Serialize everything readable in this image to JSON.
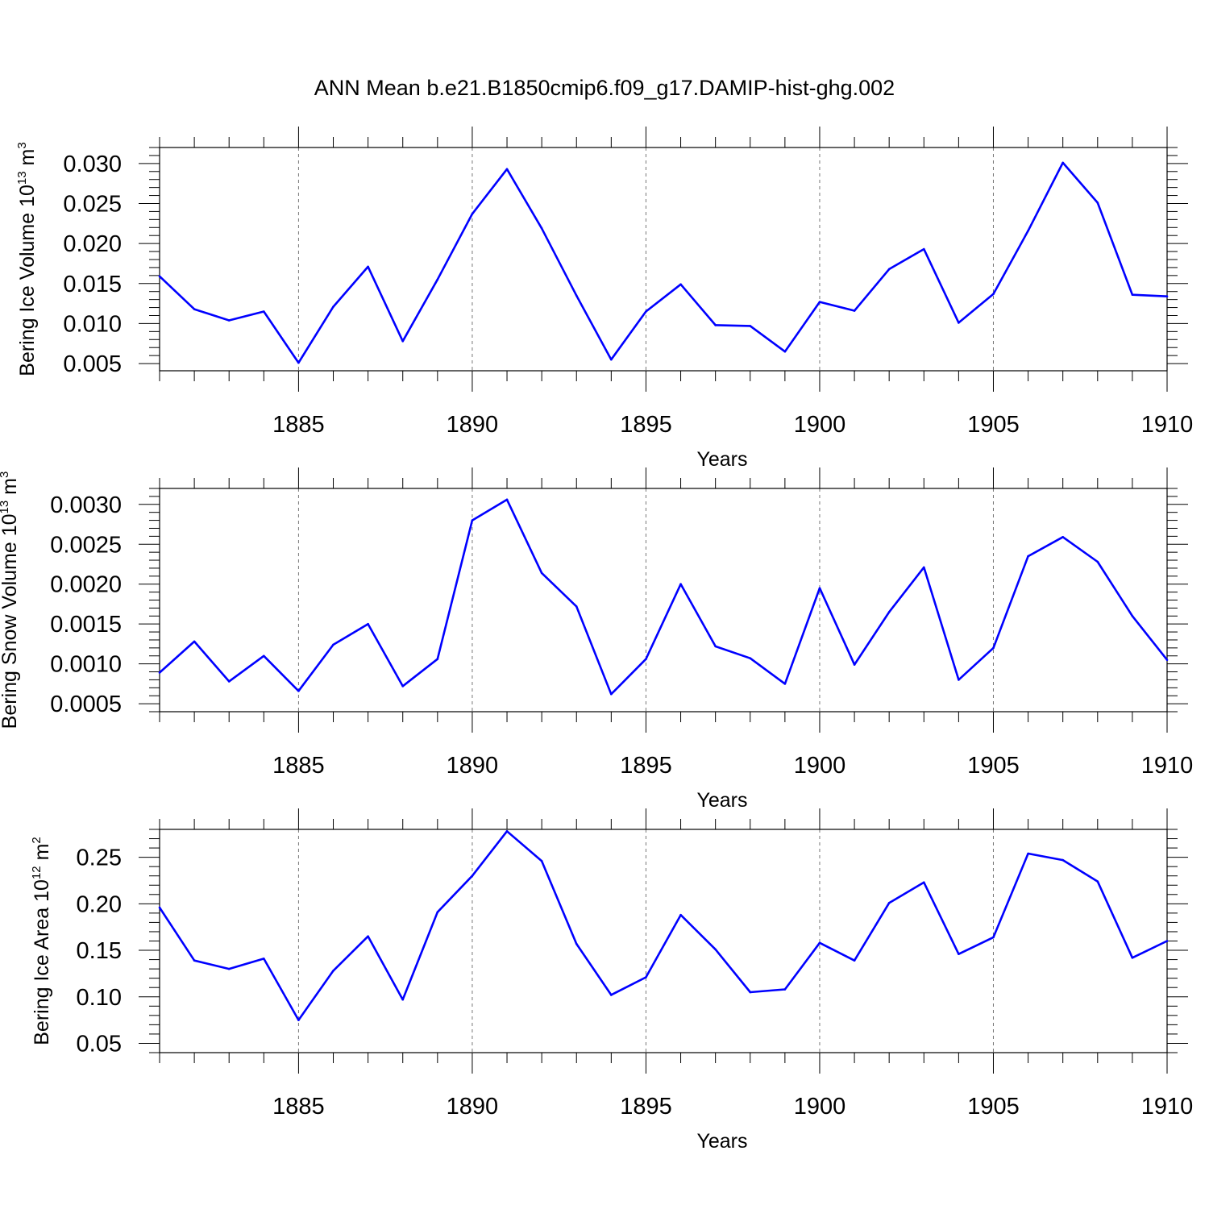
{
  "title": "ANN Mean b.e21.B1850cmip6.f09_g17.DAMIP-hist-ghg.002",
  "colors": {
    "series": "#0000ff",
    "axis": "#000000",
    "grid": "#777777"
  },
  "chart_data": [
    {
      "type": "line",
      "ylabel": "Bering Ice Volume 10",
      "ylabel_exp": "13",
      "ylabel_unit": " m",
      "ylabel_unit_exp": "3",
      "xlabel": "Years",
      "xlim": [
        1881,
        1910
      ],
      "ylim": [
        0.0041,
        0.032
      ],
      "grid": "dashed vertical at major x ticks",
      "x_ticks": [
        1885,
        1890,
        1895,
        1900,
        1905,
        1910
      ],
      "x_tick_labels": [
        "1885",
        "1890",
        "1895",
        "1900",
        "1905",
        "1910"
      ],
      "y_ticks": [
        0.005,
        0.01,
        0.015,
        0.02,
        0.025,
        0.03
      ],
      "y_tick_labels": [
        "0.005",
        "0.010",
        "0.015",
        "0.020",
        "0.025",
        "0.030"
      ],
      "x": [
        1881,
        1882,
        1883,
        1884,
        1885,
        1886,
        1887,
        1888,
        1889,
        1890,
        1891,
        1892,
        1893,
        1894,
        1895,
        1896,
        1897,
        1898,
        1899,
        1900,
        1901,
        1902,
        1903,
        1904,
        1905,
        1906,
        1907,
        1908,
        1909,
        1910
      ],
      "y": [
        0.0159,
        0.0118,
        0.0104,
        0.0115,
        0.0051,
        0.0121,
        0.0171,
        0.0078,
        0.0155,
        0.0237,
        0.0293,
        0.0219,
        0.0135,
        0.0055,
        0.0115,
        0.0149,
        0.0098,
        0.0097,
        0.0065,
        0.0127,
        0.0116,
        0.0168,
        0.0193,
        0.0101,
        0.0137,
        0.0216,
        0.0301,
        0.0251,
        0.0136,
        0.0134
      ]
    },
    {
      "type": "line",
      "ylabel": "Bering Snow Volume 10",
      "ylabel_exp": "13",
      "ylabel_unit": " m",
      "ylabel_unit_exp": "3",
      "xlabel": "Years",
      "xlim": [
        1881,
        1910
      ],
      "ylim": [
        0.0004,
        0.0032
      ],
      "grid": "dashed vertical at major x ticks",
      "x_ticks": [
        1885,
        1890,
        1895,
        1900,
        1905,
        1910
      ],
      "x_tick_labels": [
        "1885",
        "1890",
        "1895",
        "1900",
        "1905",
        "1910"
      ],
      "y_ticks": [
        0.0005,
        0.001,
        0.0015,
        0.002,
        0.0025,
        0.003
      ],
      "y_tick_labels": [
        "0.0005",
        "0.0010",
        "0.0015",
        "0.0020",
        "0.0025",
        "0.0030"
      ],
      "x": [
        1881,
        1882,
        1883,
        1884,
        1885,
        1886,
        1887,
        1888,
        1889,
        1890,
        1891,
        1892,
        1893,
        1894,
        1895,
        1896,
        1897,
        1898,
        1899,
        1900,
        1901,
        1902,
        1903,
        1904,
        1905,
        1906,
        1907,
        1908,
        1909,
        1910
      ],
      "y": [
        0.00089,
        0.00128,
        0.00078,
        0.0011,
        0.00066,
        0.00124,
        0.0015,
        0.00072,
        0.00106,
        0.0028,
        0.00306,
        0.00214,
        0.00172,
        0.00062,
        0.00106,
        0.002,
        0.00122,
        0.00107,
        0.00075,
        0.00195,
        0.00099,
        0.00165,
        0.00221,
        0.0008,
        0.0012,
        0.00235,
        0.00259,
        0.00228,
        0.0016,
        0.00105
      ]
    },
    {
      "type": "line",
      "ylabel": "Bering Ice Area 10",
      "ylabel_exp": "12",
      "ylabel_unit": " m",
      "ylabel_unit_exp": "2",
      "xlabel": "Years",
      "xlim": [
        1881,
        1910
      ],
      "ylim": [
        0.04,
        0.28
      ],
      "grid": "dashed vertical at major x ticks",
      "x_ticks": [
        1885,
        1890,
        1895,
        1900,
        1905,
        1910
      ],
      "x_tick_labels": [
        "1885",
        "1890",
        "1895",
        "1900",
        "1905",
        "1910"
      ],
      "y_ticks": [
        0.05,
        0.1,
        0.15,
        0.2,
        0.25
      ],
      "y_tick_labels": [
        "0.05",
        "0.10",
        "0.15",
        "0.20",
        "0.25"
      ],
      "x": [
        1881,
        1882,
        1883,
        1884,
        1885,
        1886,
        1887,
        1888,
        1889,
        1890,
        1891,
        1892,
        1893,
        1894,
        1895,
        1896,
        1897,
        1898,
        1899,
        1900,
        1901,
        1902,
        1903,
        1904,
        1905,
        1906,
        1907,
        1908,
        1909,
        1910
      ],
      "y": [
        0.196,
        0.139,
        0.13,
        0.141,
        0.075,
        0.128,
        0.165,
        0.097,
        0.191,
        0.23,
        0.278,
        0.246,
        0.157,
        0.102,
        0.121,
        0.188,
        0.151,
        0.105,
        0.108,
        0.158,
        0.139,
        0.201,
        0.223,
        0.146,
        0.164,
        0.254,
        0.247,
        0.224,
        0.142,
        0.16
      ]
    }
  ]
}
